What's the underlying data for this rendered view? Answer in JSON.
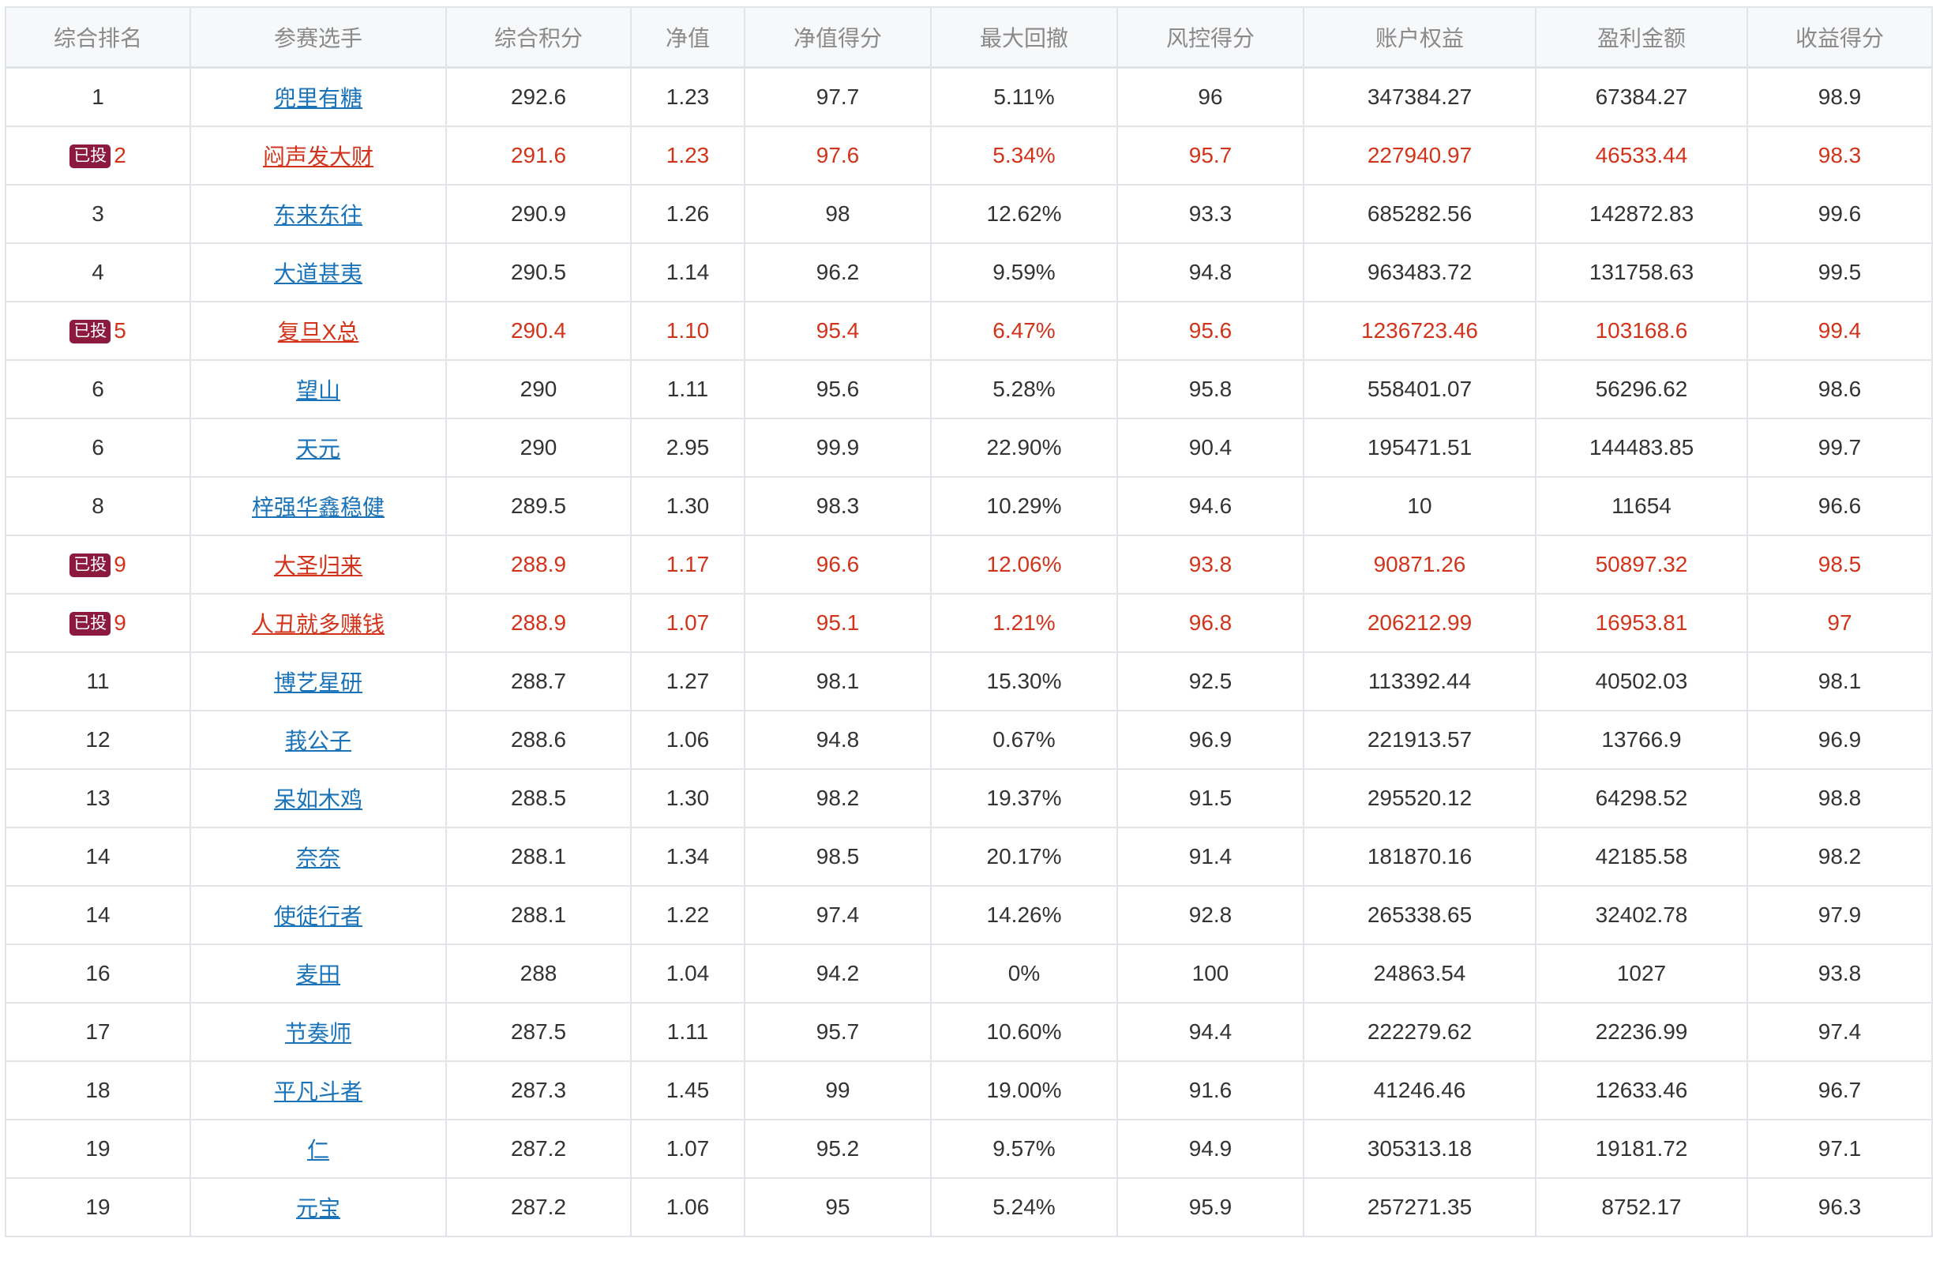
{
  "table": {
    "headers": [
      "综合排名",
      "参赛选手",
      "综合积分",
      "净值",
      "净值得分",
      "最大回撤",
      "风控得分",
      "账户权益",
      "盈利金额",
      "收益得分"
    ],
    "badge_label": "已投",
    "highlight_color": "#d1341a",
    "link_color": "#1a73b8",
    "rows": [
      {
        "rank": "1",
        "name": "兜里有糖",
        "score": "292.6",
        "nav": "1.23",
        "nav_score": "97.7",
        "max_drawdown": "5.11%",
        "risk_score": "96",
        "equity": "347384.27",
        "profit": "67384.27",
        "return_score": "98.9",
        "invested": false
      },
      {
        "rank": "2",
        "name": "闷声发大财",
        "score": "291.6",
        "nav": "1.23",
        "nav_score": "97.6",
        "max_drawdown": "5.34%",
        "risk_score": "95.7",
        "equity": "227940.97",
        "profit": "46533.44",
        "return_score": "98.3",
        "invested": true
      },
      {
        "rank": "3",
        "name": "东来东往",
        "score": "290.9",
        "nav": "1.26",
        "nav_score": "98",
        "max_drawdown": "12.62%",
        "risk_score": "93.3",
        "equity": "685282.56",
        "profit": "142872.83",
        "return_score": "99.6",
        "invested": false
      },
      {
        "rank": "4",
        "name": "大道甚夷",
        "score": "290.5",
        "nav": "1.14",
        "nav_score": "96.2",
        "max_drawdown": "9.59%",
        "risk_score": "94.8",
        "equity": "963483.72",
        "profit": "131758.63",
        "return_score": "99.5",
        "invested": false
      },
      {
        "rank": "5",
        "name": "复旦X总",
        "score": "290.4",
        "nav": "1.10",
        "nav_score": "95.4",
        "max_drawdown": "6.47%",
        "risk_score": "95.6",
        "equity": "1236723.46",
        "profit": "103168.6",
        "return_score": "99.4",
        "invested": true
      },
      {
        "rank": "6",
        "name": "望山",
        "score": "290",
        "nav": "1.11",
        "nav_score": "95.6",
        "max_drawdown": "5.28%",
        "risk_score": "95.8",
        "equity": "558401.07",
        "profit": "56296.62",
        "return_score": "98.6",
        "invested": false
      },
      {
        "rank": "6",
        "name": "天元",
        "score": "290",
        "nav": "2.95",
        "nav_score": "99.9",
        "max_drawdown": "22.90%",
        "risk_score": "90.4",
        "equity": "195471.51",
        "profit": "144483.85",
        "return_score": "99.7",
        "invested": false
      },
      {
        "rank": "8",
        "name": "梓强华鑫稳健",
        "score": "289.5",
        "nav": "1.30",
        "nav_score": "98.3",
        "max_drawdown": "10.29%",
        "risk_score": "94.6",
        "equity": "10",
        "profit": "11654",
        "return_score": "96.6",
        "invested": false
      },
      {
        "rank": "9",
        "name": "大圣归来",
        "score": "288.9",
        "nav": "1.17",
        "nav_score": "96.6",
        "max_drawdown": "12.06%",
        "risk_score": "93.8",
        "equity": "90871.26",
        "profit": "50897.32",
        "return_score": "98.5",
        "invested": true
      },
      {
        "rank": "9",
        "name": "人丑就多赚钱",
        "score": "288.9",
        "nav": "1.07",
        "nav_score": "95.1",
        "max_drawdown": "1.21%",
        "risk_score": "96.8",
        "equity": "206212.99",
        "profit": "16953.81",
        "return_score": "97",
        "invested": true
      },
      {
        "rank": "11",
        "name": "博艺星研",
        "score": "288.7",
        "nav": "1.27",
        "nav_score": "98.1",
        "max_drawdown": "15.30%",
        "risk_score": "92.5",
        "equity": "113392.44",
        "profit": "40502.03",
        "return_score": "98.1",
        "invested": false
      },
      {
        "rank": "12",
        "name": "莪公子",
        "score": "288.6",
        "nav": "1.06",
        "nav_score": "94.8",
        "max_drawdown": "0.67%",
        "risk_score": "96.9",
        "equity": "221913.57",
        "profit": "13766.9",
        "return_score": "96.9",
        "invested": false
      },
      {
        "rank": "13",
        "name": "呆如木鸡",
        "score": "288.5",
        "nav": "1.30",
        "nav_score": "98.2",
        "max_drawdown": "19.37%",
        "risk_score": "91.5",
        "equity": "295520.12",
        "profit": "64298.52",
        "return_score": "98.8",
        "invested": false
      },
      {
        "rank": "14",
        "name": "奈奈",
        "score": "288.1",
        "nav": "1.34",
        "nav_score": "98.5",
        "max_drawdown": "20.17%",
        "risk_score": "91.4",
        "equity": "181870.16",
        "profit": "42185.58",
        "return_score": "98.2",
        "invested": false
      },
      {
        "rank": "14",
        "name": "使徒行者",
        "score": "288.1",
        "nav": "1.22",
        "nav_score": "97.4",
        "max_drawdown": "14.26%",
        "risk_score": "92.8",
        "equity": "265338.65",
        "profit": "32402.78",
        "return_score": "97.9",
        "invested": false
      },
      {
        "rank": "16",
        "name": "麦田",
        "score": "288",
        "nav": "1.04",
        "nav_score": "94.2",
        "max_drawdown": "0%",
        "risk_score": "100",
        "equity": "24863.54",
        "profit": "1027",
        "return_score": "93.8",
        "invested": false
      },
      {
        "rank": "17",
        "name": "节奏师",
        "score": "287.5",
        "nav": "1.11",
        "nav_score": "95.7",
        "max_drawdown": "10.60%",
        "risk_score": "94.4",
        "equity": "222279.62",
        "profit": "22236.99",
        "return_score": "97.4",
        "invested": false
      },
      {
        "rank": "18",
        "name": "平凡斗者",
        "score": "287.3",
        "nav": "1.45",
        "nav_score": "99",
        "max_drawdown": "19.00%",
        "risk_score": "91.6",
        "equity": "41246.46",
        "profit": "12633.46",
        "return_score": "96.7",
        "invested": false
      },
      {
        "rank": "19",
        "name": "仁",
        "score": "287.2",
        "nav": "1.07",
        "nav_score": "95.2",
        "max_drawdown": "9.57%",
        "risk_score": "94.9",
        "equity": "305313.18",
        "profit": "19181.72",
        "return_score": "97.1",
        "invested": false
      },
      {
        "rank": "19",
        "name": "元宝",
        "score": "287.2",
        "nav": "1.06",
        "nav_score": "95",
        "max_drawdown": "5.24%",
        "risk_score": "95.9",
        "equity": "257271.35",
        "profit": "8752.17",
        "return_score": "96.3",
        "invested": false
      }
    ]
  }
}
